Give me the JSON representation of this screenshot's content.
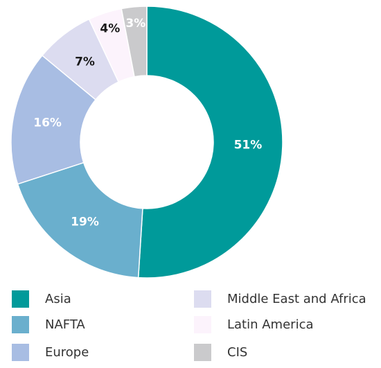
{
  "chart_data": {
    "type": "pie",
    "title": "",
    "categories": [
      "Asia",
      "NAFTA",
      "Europe",
      "Middle East and Africa",
      "Latin America",
      "CIS"
    ],
    "values": [
      51,
      19,
      16,
      7,
      4,
      3
    ],
    "labels": [
      "51%",
      "19%",
      "16%",
      "7%",
      "4%",
      "3%"
    ],
    "colors": [
      "#009a9a",
      "#6aafcd",
      "#a8bde3",
      "#dcdcf0",
      "#fcf3fc",
      "#cacacc"
    ],
    "label_colors": [
      "#ffffff",
      "#ffffff",
      "#ffffff",
      "#1a1a1a",
      "#1a1a1a",
      "#ffffff"
    ],
    "donut": true,
    "legend_position": "bottom"
  },
  "legend": {
    "items": [
      {
        "label": "Asia",
        "color": "#009a9a"
      },
      {
        "label": "NAFTA",
        "color": "#6aafcd"
      },
      {
        "label": "Europe",
        "color": "#a8bde3"
      },
      {
        "label": "Middle East and Africa",
        "color": "#dcdcf0"
      },
      {
        "label": "Latin America",
        "color": "#fcf3fc"
      },
      {
        "label": "CIS",
        "color": "#cacacc"
      }
    ]
  }
}
